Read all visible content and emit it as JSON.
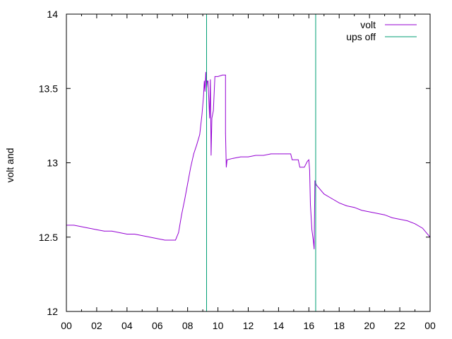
{
  "chart_data": {
    "type": "line",
    "title": "",
    "xlabel": "",
    "ylabel": "volt and",
    "xlim": [
      0,
      24
    ],
    "ylim": [
      12,
      14
    ],
    "x_tick_labels": [
      "00",
      "02",
      "04",
      "06",
      "08",
      "10",
      "12",
      "14",
      "16",
      "18",
      "20",
      "22",
      "00"
    ],
    "y_tick_labels": [
      "12",
      "12.5",
      "13",
      "13.5",
      "14"
    ],
    "grid": false,
    "legend_position": "top-right",
    "series": [
      {
        "name": "volt",
        "color": "#9400d3",
        "points": [
          [
            0.0,
            12.58
          ],
          [
            0.5,
            12.58
          ],
          [
            1.0,
            12.57
          ],
          [
            1.5,
            12.56
          ],
          [
            2.0,
            12.55
          ],
          [
            2.5,
            12.54
          ],
          [
            3.0,
            12.54
          ],
          [
            3.5,
            12.53
          ],
          [
            4.0,
            12.52
          ],
          [
            4.5,
            12.52
          ],
          [
            5.0,
            12.51
          ],
          [
            5.5,
            12.5
          ],
          [
            6.0,
            12.49
          ],
          [
            6.5,
            12.48
          ],
          [
            7.0,
            12.48
          ],
          [
            7.2,
            12.48
          ],
          [
            7.4,
            12.53
          ],
          [
            7.6,
            12.65
          ],
          [
            7.8,
            12.75
          ],
          [
            8.0,
            12.86
          ],
          [
            8.2,
            12.97
          ],
          [
            8.4,
            13.06
          ],
          [
            8.6,
            13.12
          ],
          [
            8.8,
            13.19
          ],
          [
            8.95,
            13.33
          ],
          [
            9.05,
            13.45
          ],
          [
            9.1,
            13.55
          ],
          [
            9.15,
            13.48
          ],
          [
            9.2,
            13.61
          ],
          [
            9.25,
            13.5
          ],
          [
            9.3,
            13.55
          ],
          [
            9.35,
            13.55
          ],
          [
            9.45,
            13.3
          ],
          [
            9.5,
            13.56
          ],
          [
            9.55,
            13.05
          ],
          [
            9.6,
            13.3
          ],
          [
            9.7,
            13.35
          ],
          [
            9.8,
            13.58
          ],
          [
            10.0,
            13.58
          ],
          [
            10.3,
            13.59
          ],
          [
            10.5,
            13.59
          ],
          [
            10.5,
            13.2
          ],
          [
            10.55,
            12.97
          ],
          [
            10.6,
            13.02
          ],
          [
            11.0,
            13.03
          ],
          [
            11.5,
            13.04
          ],
          [
            12.0,
            13.04
          ],
          [
            12.5,
            13.05
          ],
          [
            13.0,
            13.05
          ],
          [
            13.5,
            13.06
          ],
          [
            14.0,
            13.06
          ],
          [
            14.5,
            13.06
          ],
          [
            14.8,
            13.06
          ],
          [
            14.9,
            13.02
          ],
          [
            15.3,
            13.02
          ],
          [
            15.4,
            12.97
          ],
          [
            15.7,
            12.97
          ],
          [
            15.9,
            13.01
          ],
          [
            16.0,
            13.02
          ],
          [
            16.05,
            12.95
          ],
          [
            16.1,
            12.72
          ],
          [
            16.2,
            12.55
          ],
          [
            16.3,
            12.47
          ],
          [
            16.35,
            12.42
          ],
          [
            16.4,
            12.88
          ],
          [
            16.5,
            12.85
          ],
          [
            17.0,
            12.79
          ],
          [
            17.5,
            12.76
          ],
          [
            18.0,
            12.73
          ],
          [
            18.5,
            12.71
          ],
          [
            19.0,
            12.7
          ],
          [
            19.5,
            12.68
          ],
          [
            20.0,
            12.67
          ],
          [
            20.5,
            12.66
          ],
          [
            21.0,
            12.65
          ],
          [
            21.5,
            12.63
          ],
          [
            22.0,
            12.62
          ],
          [
            22.5,
            12.61
          ],
          [
            23.0,
            12.59
          ],
          [
            23.5,
            12.56
          ],
          [
            24.0,
            12.5
          ]
        ]
      },
      {
        "name": "ups off",
        "color": "#009e73",
        "vertical_lines_x": [
          9.25,
          16.45
        ]
      }
    ]
  }
}
